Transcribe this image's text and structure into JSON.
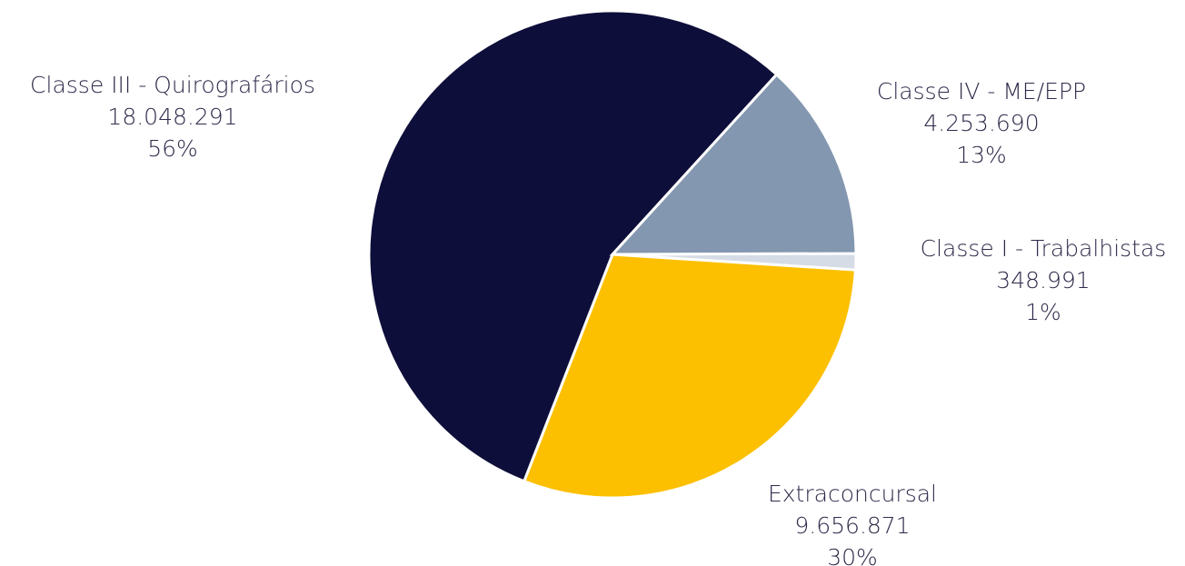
{
  "chart_data": {
    "type": "pie",
    "slices": [
      {
        "label": "Classe I - Trabalhistas",
        "value": 348991,
        "value_label": "348.991",
        "percent_label": "1%",
        "color": "#d6dce6"
      },
      {
        "label": "Extraconcursal",
        "value": 9656871,
        "value_label": "9.656.871",
        "percent_label": "30%",
        "color": "#fcc000"
      },
      {
        "label": "Classe III - Quirografários",
        "value": 18048291,
        "value_label": "18.048.291",
        "percent_label": "56%",
        "color": "#0e0e3a"
      },
      {
        "label": "Classe IV - ME/EPP",
        "value": 4253690,
        "value_label": "4.253.690",
        "percent_label": "13%",
        "color": "#8497b0"
      }
    ]
  }
}
